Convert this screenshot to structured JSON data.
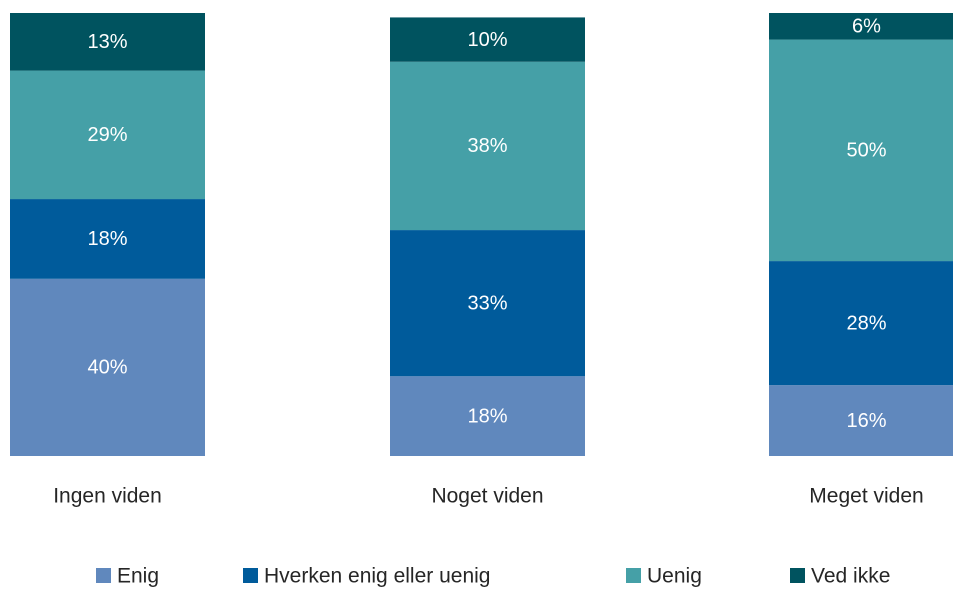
{
  "chart_data": {
    "type": "stacked_bar",
    "categories": [
      "Ingen viden",
      "Noget viden",
      "Meget viden"
    ],
    "ylim": [
      0,
      100
    ],
    "series": [
      {
        "name": "Enig",
        "color": "#6088bd",
        "values": [
          40,
          18,
          16
        ],
        "value_labels": [
          "40%",
          "18%",
          "16%"
        ]
      },
      {
        "name": "Hverken enig eller uenig",
        "color": "#005b9b",
        "values": [
          18,
          33,
          28
        ],
        "value_labels": [
          "18%",
          "33%",
          "28%"
        ]
      },
      {
        "name": "Uenig",
        "color": "#45a0a7",
        "values": [
          29,
          38,
          50
        ],
        "value_labels": [
          "29%",
          "38%",
          "50%"
        ]
      },
      {
        "name": "Ved ikke",
        "color": "#00535f",
        "values": [
          13,
          10,
          6
        ],
        "value_labels": [
          "13%",
          "10%",
          "6%"
        ]
      }
    ]
  }
}
